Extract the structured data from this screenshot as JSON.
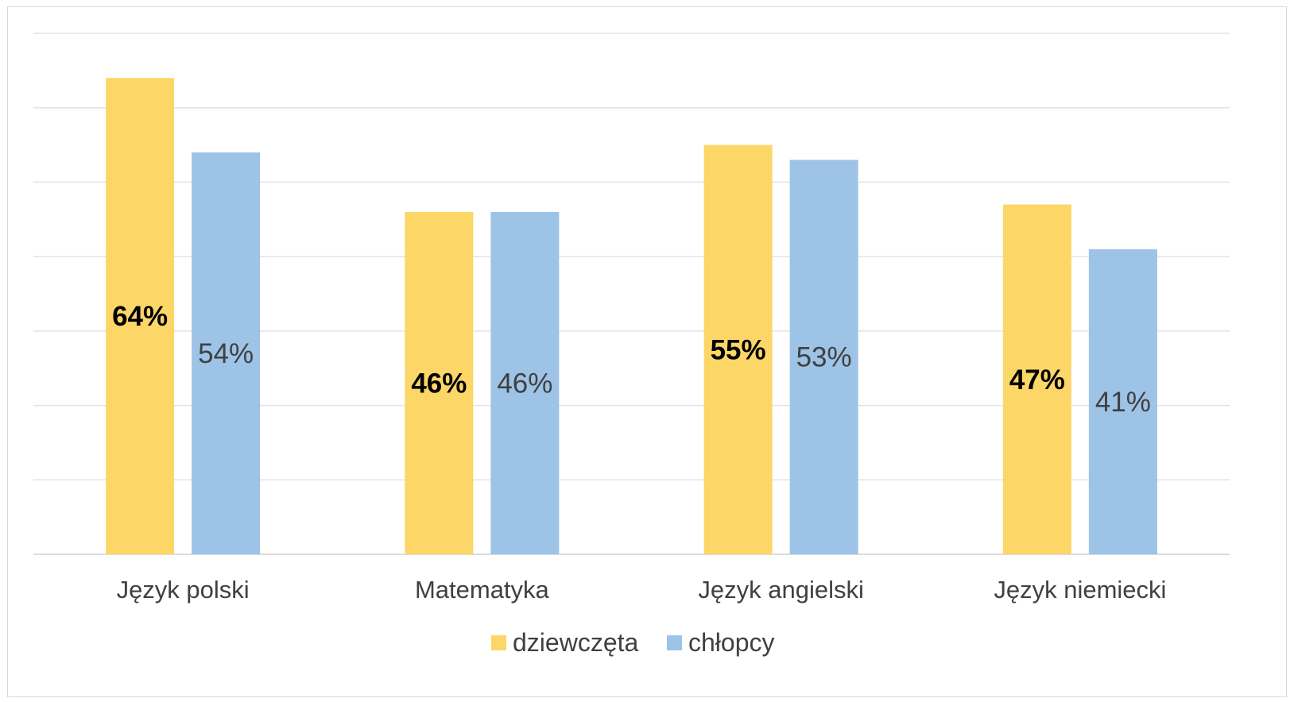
{
  "chart_data": {
    "type": "bar",
    "categories": [
      "Język polski",
      "Matematyka",
      "Język angielski",
      "Język niemiecki"
    ],
    "series": [
      {
        "name": "dziewczęta",
        "values": [
          64,
          46,
          55,
          47
        ],
        "labels": [
          "64%",
          "46%",
          "55%",
          "47%"
        ],
        "color": "#FCD667",
        "label_color": "#000000"
      },
      {
        "name": "chłopcy",
        "values": [
          54,
          46,
          53,
          41
        ],
        "labels": [
          "54%",
          "46%",
          "53%",
          "41%"
        ],
        "color": "#9DC3E6",
        "label_color": "#404040"
      }
    ],
    "ylim": [
      0,
      70
    ],
    "grid": true,
    "legend": "bottom"
  }
}
